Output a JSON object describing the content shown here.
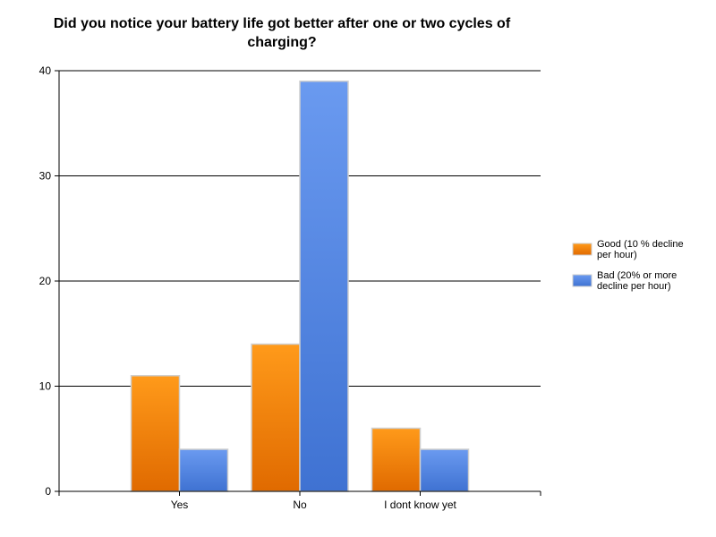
{
  "chart_data": {
    "type": "bar",
    "title": "Did you notice your battery life got better after one or two cycles of charging?",
    "categories": [
      "Yes",
      "No",
      "I dont know yet"
    ],
    "series": [
      {
        "name_lines": [
          "Good (10 % decline",
          "per hour)"
        ],
        "values": [
          11,
          14,
          6
        ],
        "color": "#f07d00"
      },
      {
        "name_lines": [
          "Bad (20% or more",
          "decline per hour)"
        ],
        "values": [
          4,
          39,
          4
        ],
        "color": "#5a8ce6"
      }
    ],
    "ylim": [
      0,
      40
    ],
    "yticks": [
      0,
      10,
      20,
      30,
      40
    ],
    "grid": true,
    "legend": "right"
  }
}
